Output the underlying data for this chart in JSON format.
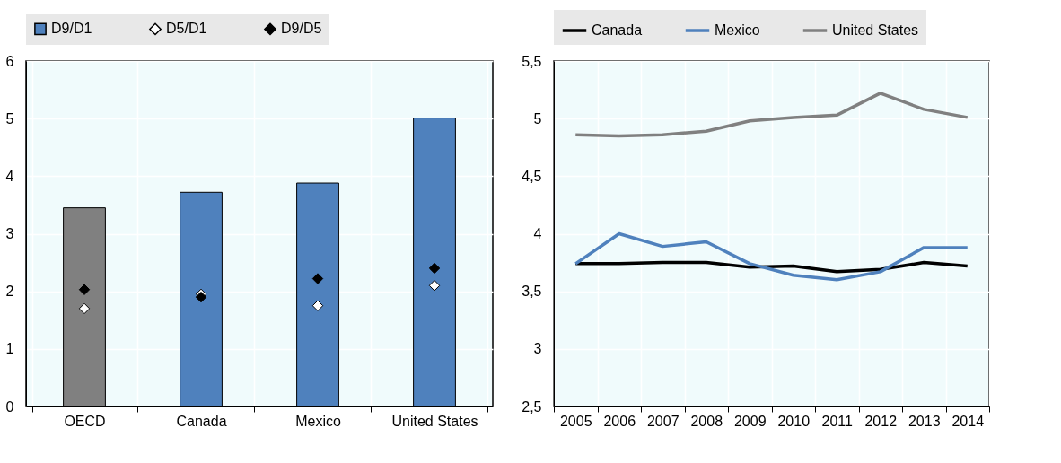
{
  "chart_data": [
    {
      "type": "bar",
      "categories": [
        "OECD",
        "Canada",
        "Mexico",
        "United States"
      ],
      "series": [
        {
          "name": "D9/D1",
          "type": "bar",
          "color": "#4f81bd",
          "colors": [
            "#808080",
            "#4f81bd",
            "#4f81bd",
            "#4f81bd"
          ],
          "values": [
            3.45,
            3.72,
            3.88,
            5.01
          ]
        },
        {
          "name": "D5/D1",
          "type": "scatter",
          "color": "#ffffff",
          "values": [
            1.7,
            1.95,
            1.75,
            2.1
          ]
        },
        {
          "name": "D9/D5",
          "type": "scatter",
          "color": "#000000",
          "values": [
            2.03,
            1.9,
            2.22,
            2.4
          ]
        }
      ],
      "ylim": [
        0,
        6
      ],
      "yticks": [
        0,
        1,
        2,
        3,
        4,
        5,
        6
      ],
      "grid": true,
      "legend": "top",
      "marker": "diamond"
    },
    {
      "type": "line",
      "categories": [
        "2005",
        "2006",
        "2007",
        "2008",
        "2009",
        "2010",
        "2011",
        "2012",
        "2013",
        "2014"
      ],
      "series": [
        {
          "name": "Canada",
          "color": "#000000",
          "values": [
            3.74,
            3.74,
            3.75,
            3.75,
            3.71,
            3.72,
            3.67,
            3.69,
            3.75,
            3.72
          ]
        },
        {
          "name": "Mexico",
          "color": "#4f81bd",
          "values": [
            3.74,
            4.0,
            3.89,
            3.93,
            3.74,
            3.64,
            3.6,
            3.67,
            3.88,
            3.88
          ]
        },
        {
          "name": "United States",
          "color": "#808080",
          "values": [
            4.86,
            4.85,
            4.86,
            4.89,
            4.98,
            5.01,
            5.03,
            5.22,
            5.08,
            5.01
          ]
        }
      ],
      "ylim": [
        2.5,
        5.5
      ],
      "yticks": [
        {
          "value": 2.5,
          "label": "2,5"
        },
        3,
        {
          "value": 3.5,
          "label": "3,5"
        },
        4,
        {
          "value": 4.5,
          "label": "4,5"
        },
        5,
        {
          "value": 5.5,
          "label": "5,5"
        }
      ],
      "grid": true,
      "legend": "top"
    }
  ]
}
